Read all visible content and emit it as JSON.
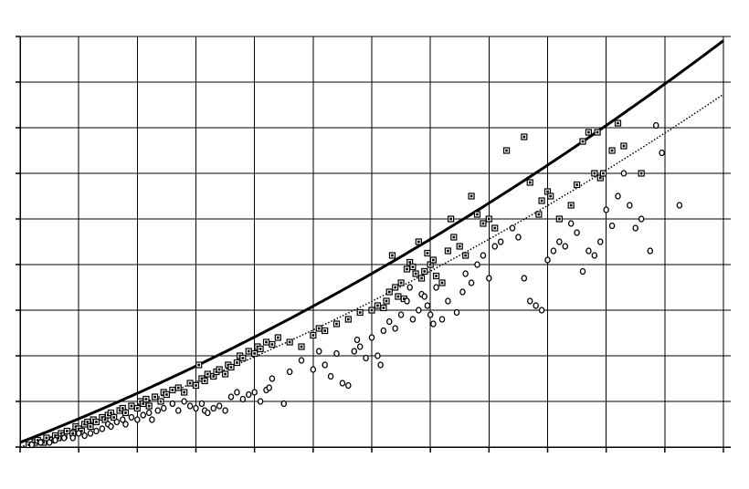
{
  "chart_data": {
    "type": "scatter",
    "title": "",
    "xlabel": "",
    "ylabel": "",
    "xlim": [
      0,
      12
    ],
    "ylim": [
      0,
      9
    ],
    "grid": true,
    "legend": "none",
    "series": [
      {
        "marker": "square",
        "color": "#000000",
        "points": [
          [
            0.15,
            0.05
          ],
          [
            0.25,
            0.1
          ],
          [
            0.3,
            0.15
          ],
          [
            0.4,
            0.1
          ],
          [
            0.45,
            0.2
          ],
          [
            0.55,
            0.15
          ],
          [
            0.6,
            0.25
          ],
          [
            0.65,
            0.2
          ],
          [
            0.7,
            0.3
          ],
          [
            0.75,
            0.25
          ],
          [
            0.8,
            0.35
          ],
          [
            0.9,
            0.3
          ],
          [
            0.95,
            0.45
          ],
          [
            1.0,
            0.4
          ],
          [
            1.05,
            0.35
          ],
          [
            1.1,
            0.5
          ],
          [
            1.15,
            0.55
          ],
          [
            1.2,
            0.45
          ],
          [
            1.25,
            0.6
          ],
          [
            1.3,
            0.55
          ],
          [
            1.4,
            0.65
          ],
          [
            1.45,
            0.6
          ],
          [
            1.5,
            0.7
          ],
          [
            1.55,
            0.75
          ],
          [
            1.6,
            0.65
          ],
          [
            1.7,
            0.8
          ],
          [
            1.75,
            0.85
          ],
          [
            1.8,
            0.75
          ],
          [
            1.9,
            0.9
          ],
          [
            2.0,
            0.85
          ],
          [
            2.05,
            1.0
          ],
          [
            2.1,
            0.95
          ],
          [
            2.15,
            1.05
          ],
          [
            2.2,
            0.9
          ],
          [
            2.3,
            1.1
          ],
          [
            2.4,
            1.0
          ],
          [
            2.45,
            1.2
          ],
          [
            2.5,
            1.15
          ],
          [
            2.6,
            1.25
          ],
          [
            2.7,
            1.3
          ],
          [
            2.8,
            1.2
          ],
          [
            2.9,
            1.4
          ],
          [
            3.0,
            1.35
          ],
          [
            3.05,
            1.8
          ],
          [
            3.1,
            1.5
          ],
          [
            3.15,
            1.45
          ],
          [
            3.2,
            1.6
          ],
          [
            3.3,
            1.55
          ],
          [
            3.35,
            1.65
          ],
          [
            3.4,
            1.7
          ],
          [
            3.5,
            1.6
          ],
          [
            3.55,
            1.8
          ],
          [
            3.6,
            1.75
          ],
          [
            3.7,
            1.85
          ],
          [
            3.75,
            2.0
          ],
          [
            3.8,
            1.95
          ],
          [
            3.9,
            2.1
          ],
          [
            4.0,
            2.05
          ],
          [
            4.05,
            2.2
          ],
          [
            4.1,
            2.15
          ],
          [
            4.2,
            2.3
          ],
          [
            4.3,
            2.25
          ],
          [
            4.4,
            2.4
          ],
          [
            4.6,
            2.3
          ],
          [
            4.8,
            2.2
          ],
          [
            5.0,
            2.45
          ],
          [
            5.1,
            2.6
          ],
          [
            5.2,
            2.55
          ],
          [
            5.4,
            2.7
          ],
          [
            5.6,
            2.8
          ],
          [
            5.8,
            2.95
          ],
          [
            6.0,
            3.0
          ],
          [
            6.1,
            3.1
          ],
          [
            6.2,
            3.05
          ],
          [
            6.25,
            3.2
          ],
          [
            6.3,
            3.4
          ],
          [
            6.35,
            4.2
          ],
          [
            6.4,
            3.5
          ],
          [
            6.45,
            3.3
          ],
          [
            6.5,
            3.6
          ],
          [
            6.55,
            3.25
          ],
          [
            6.6,
            3.9
          ],
          [
            6.65,
            4.05
          ],
          [
            6.7,
            3.95
          ],
          [
            6.75,
            3.8
          ],
          [
            6.8,
            4.5
          ],
          [
            6.85,
            3.7
          ],
          [
            6.9,
            3.85
          ],
          [
            6.95,
            4.25
          ],
          [
            7.0,
            4.0
          ],
          [
            7.05,
            4.1
          ],
          [
            7.1,
            3.75
          ],
          [
            7.2,
            3.6
          ],
          [
            7.3,
            4.3
          ],
          [
            7.35,
            5.0
          ],
          [
            7.4,
            4.6
          ],
          [
            7.5,
            4.4
          ],
          [
            7.6,
            4.2
          ],
          [
            7.7,
            5.5
          ],
          [
            7.8,
            5.1
          ],
          [
            7.9,
            4.9
          ],
          [
            8.0,
            5.0
          ],
          [
            8.1,
            4.8
          ],
          [
            8.3,
            6.5
          ],
          [
            8.6,
            6.8
          ],
          [
            8.7,
            5.8
          ],
          [
            8.85,
            5.1
          ],
          [
            8.9,
            5.4
          ],
          [
            9.0,
            5.6
          ],
          [
            9.05,
            5.5
          ],
          [
            9.2,
            5.0
          ],
          [
            9.4,
            5.3
          ],
          [
            9.5,
            5.75
          ],
          [
            9.6,
            6.7
          ],
          [
            9.7,
            6.9
          ],
          [
            9.8,
            6.0
          ],
          [
            9.85,
            6.9
          ],
          [
            9.9,
            5.9
          ],
          [
            9.95,
            6.0
          ],
          [
            10.1,
            6.5
          ],
          [
            10.2,
            7.1
          ],
          [
            10.3,
            6.6
          ],
          [
            10.6,
            6.0
          ]
        ]
      },
      {
        "marker": "circle",
        "color": "#000000",
        "points": [
          [
            0.2,
            0.05
          ],
          [
            0.35,
            0.1
          ],
          [
            0.5,
            0.1
          ],
          [
            0.6,
            0.15
          ],
          [
            0.75,
            0.2
          ],
          [
            0.9,
            0.2
          ],
          [
            1.0,
            0.3
          ],
          [
            1.1,
            0.25
          ],
          [
            1.2,
            0.3
          ],
          [
            1.3,
            0.35
          ],
          [
            1.4,
            0.4
          ],
          [
            1.5,
            0.5
          ],
          [
            1.55,
            0.45
          ],
          [
            1.65,
            0.55
          ],
          [
            1.75,
            0.6
          ],
          [
            1.8,
            0.5
          ],
          [
            1.9,
            0.65
          ],
          [
            2.0,
            0.6
          ],
          [
            2.1,
            0.7
          ],
          [
            2.2,
            0.75
          ],
          [
            2.25,
            0.6
          ],
          [
            2.35,
            0.8
          ],
          [
            2.45,
            0.85
          ],
          [
            2.6,
            0.95
          ],
          [
            2.7,
            0.8
          ],
          [
            2.8,
            1.0
          ],
          [
            2.9,
            0.9
          ],
          [
            3.0,
            0.85
          ],
          [
            3.1,
            0.95
          ],
          [
            3.15,
            0.8
          ],
          [
            3.2,
            0.75
          ],
          [
            3.3,
            0.85
          ],
          [
            3.4,
            0.9
          ],
          [
            3.5,
            0.8
          ],
          [
            3.6,
            1.1
          ],
          [
            3.7,
            1.2
          ],
          [
            3.8,
            1.05
          ],
          [
            3.9,
            1.15
          ],
          [
            4.0,
            1.2
          ],
          [
            4.1,
            1.0
          ],
          [
            4.2,
            1.25
          ],
          [
            4.25,
            1.3
          ],
          [
            4.3,
            1.5
          ],
          [
            4.5,
            0.95
          ],
          [
            4.6,
            1.65
          ],
          [
            4.8,
            1.9
          ],
          [
            5.0,
            1.7
          ],
          [
            5.1,
            2.1
          ],
          [
            5.2,
            1.8
          ],
          [
            5.3,
            1.55
          ],
          [
            5.4,
            2.05
          ],
          [
            5.5,
            1.4
          ],
          [
            5.6,
            1.35
          ],
          [
            5.7,
            2.1
          ],
          [
            5.75,
            2.35
          ],
          [
            5.8,
            2.2
          ],
          [
            5.9,
            1.95
          ],
          [
            6.0,
            2.4
          ],
          [
            6.1,
            2.0
          ],
          [
            6.15,
            1.8
          ],
          [
            6.2,
            2.55
          ],
          [
            6.3,
            2.75
          ],
          [
            6.4,
            2.6
          ],
          [
            6.5,
            2.9
          ],
          [
            6.6,
            3.2
          ],
          [
            6.65,
            3.5
          ],
          [
            6.7,
            2.8
          ],
          [
            6.8,
            3.0
          ],
          [
            6.85,
            3.35
          ],
          [
            6.9,
            3.3
          ],
          [
            6.95,
            3.1
          ],
          [
            7.0,
            2.9
          ],
          [
            7.05,
            2.7
          ],
          [
            7.1,
            3.5
          ],
          [
            7.2,
            2.8
          ],
          [
            7.3,
            3.2
          ],
          [
            7.45,
            2.95
          ],
          [
            7.55,
            3.4
          ],
          [
            7.6,
            3.8
          ],
          [
            7.7,
            3.6
          ],
          [
            7.8,
            4.0
          ],
          [
            7.9,
            4.2
          ],
          [
            8.0,
            3.7
          ],
          [
            8.1,
            4.4
          ],
          [
            8.2,
            4.5
          ],
          [
            8.4,
            4.8
          ],
          [
            8.5,
            4.6
          ],
          [
            8.6,
            3.7
          ],
          [
            8.7,
            3.2
          ],
          [
            8.8,
            3.1
          ],
          [
            8.9,
            3.0
          ],
          [
            9.0,
            4.1
          ],
          [
            9.1,
            4.3
          ],
          [
            9.2,
            4.5
          ],
          [
            9.3,
            4.4
          ],
          [
            9.4,
            4.9
          ],
          [
            9.5,
            4.7
          ],
          [
            9.6,
            3.85
          ],
          [
            9.7,
            4.3
          ],
          [
            9.8,
            4.2
          ],
          [
            9.9,
            4.5
          ],
          [
            10.0,
            5.2
          ],
          [
            10.1,
            4.85
          ],
          [
            10.2,
            5.5
          ],
          [
            10.3,
            6.0
          ],
          [
            10.4,
            5.3
          ],
          [
            10.5,
            4.8
          ],
          [
            10.6,
            5.0
          ],
          [
            10.75,
            4.3
          ],
          [
            10.85,
            7.05
          ],
          [
            10.95,
            6.45
          ],
          [
            11.25,
            5.3
          ]
        ]
      }
    ],
    "fit_lines": [
      {
        "style": "solid-thick",
        "coef": [
          0.1,
          0.5,
          0.0195
        ]
      },
      {
        "style": "dotted-thin",
        "coef": [
          0.0,
          0.42,
          0.0187
        ]
      }
    ],
    "fit_range": [
      0,
      12
    ]
  }
}
